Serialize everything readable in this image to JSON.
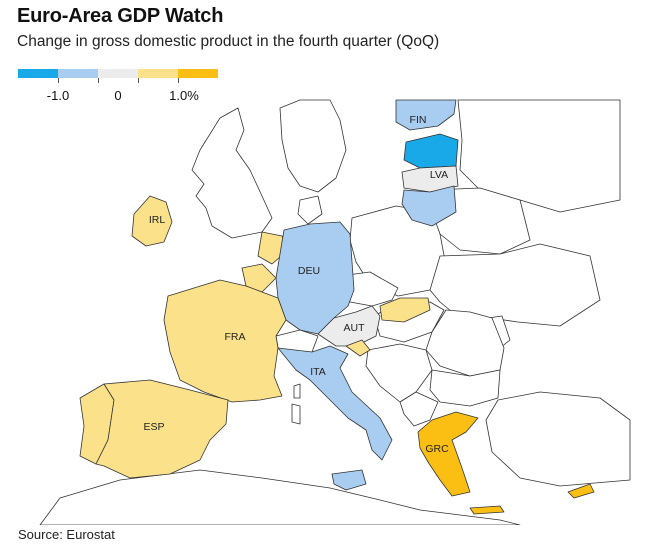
{
  "header": {
    "title": "Euro-Area GDP Watch",
    "subtitle": "Change in gross domestic product in the fourth quarter (QoQ)"
  },
  "legend": {
    "labels": [
      "-1.0",
      "0",
      "1.0%"
    ],
    "colors": [
      "#1aa9e8",
      "#a9cdf0",
      "#ececec",
      "#fbe28a",
      "#fbbf14"
    ]
  },
  "countries": [
    {
      "code": "FIN",
      "label": "FIN",
      "color": "#a9cdf0"
    },
    {
      "code": "EST",
      "label": "",
      "color": "#1aa9e8"
    },
    {
      "code": "LVA",
      "label": "LVA",
      "color": "#ececec"
    },
    {
      "code": "LTU",
      "label": "",
      "color": "#a9cdf0"
    },
    {
      "code": "IRL",
      "label": "IRL",
      "color": "#fbe28a"
    },
    {
      "code": "DEU",
      "label": "DEU",
      "color": "#a9cdf0"
    },
    {
      "code": "NLD",
      "label": "",
      "color": "#fbe28a"
    },
    {
      "code": "BEL",
      "label": "",
      "color": "#fbe28a"
    },
    {
      "code": "FRA",
      "label": "FRA",
      "color": "#fbe28a"
    },
    {
      "code": "ESP",
      "label": "ESP",
      "color": "#fbe28a"
    },
    {
      "code": "PRT",
      "label": "",
      "color": "#fbe28a"
    },
    {
      "code": "AUT",
      "label": "AUT",
      "color": "#ececec"
    },
    {
      "code": "SVK",
      "label": "",
      "color": "#fbe28a"
    },
    {
      "code": "SVN",
      "label": "",
      "color": "#fbe28a"
    },
    {
      "code": "ITA",
      "label": "ITA",
      "color": "#a9cdf0"
    },
    {
      "code": "GRC",
      "label": "GRC",
      "color": "#fbbf14"
    },
    {
      "code": "CYP",
      "label": "",
      "color": "#fbbf14"
    }
  ],
  "source": "Source: Eurostat"
}
